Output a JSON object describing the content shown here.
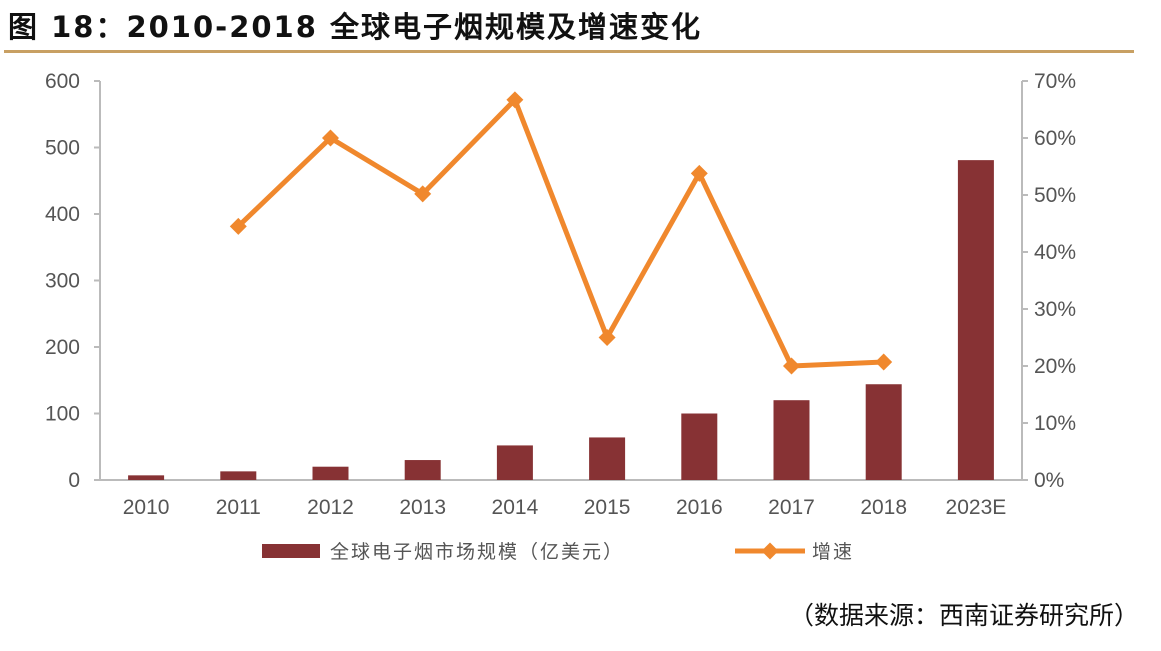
{
  "title": "图 18：2010-2018 全球电子烟规模及增速变化",
  "source": "（数据来源：西南证券研究所）",
  "chart_data": {
    "type": "bar+line",
    "title": "图 18：2010-2018 全球电子烟规模及增速变化",
    "categories": [
      "2010",
      "2011",
      "2012",
      "2013",
      "2014",
      "2015",
      "2016",
      "2017",
      "2018",
      "2023E"
    ],
    "series": [
      {
        "name": "全球电子烟市场规模（亿美元）",
        "type": "bar",
        "axis": "left",
        "color": "#873234",
        "values": [
          7,
          13,
          20,
          30,
          52,
          64,
          100,
          120,
          144,
          481
        ]
      },
      {
        "name": "增速",
        "type": "line",
        "axis": "right",
        "color": "#f0882d",
        "values": [
          null,
          44.5,
          60,
          50.2,
          66.7,
          25,
          53.8,
          20,
          20.7,
          null
        ]
      }
    ],
    "left_axis": {
      "ylim": [
        0,
        600
      ],
      "ticks": [
        "0",
        "100",
        "200",
        "300",
        "400",
        "500",
        "600"
      ]
    },
    "right_axis": {
      "ylim": [
        0,
        70
      ],
      "ticks": [
        "0%",
        "10%",
        "20%",
        "30%",
        "40%",
        "50%",
        "60%",
        "70%"
      ]
    },
    "grid": false,
    "legend": "bottom"
  }
}
